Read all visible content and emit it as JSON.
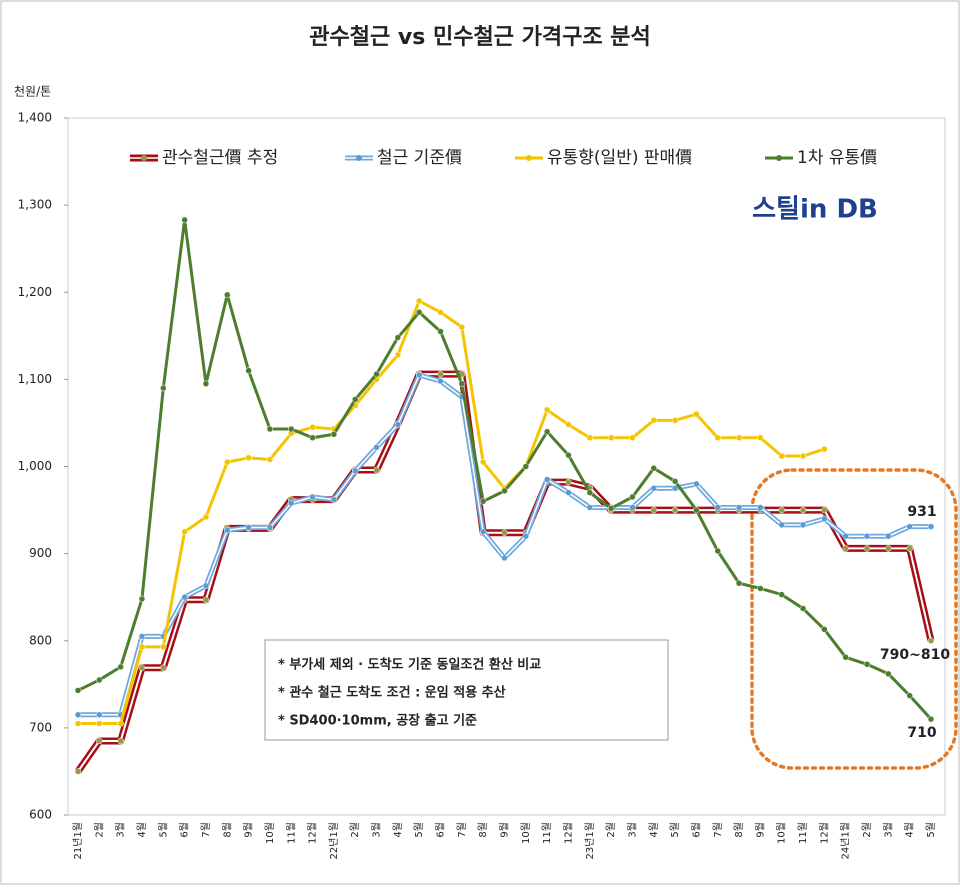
{
  "chart_data": {
    "type": "line",
    "title": "관수철근 vs 민수철근 가격구조 분석",
    "y_unit": "천원/톤",
    "logo": "스틸in DB",
    "categories": [
      "21년1월",
      "2월",
      "3월",
      "4월",
      "5월",
      "6월",
      "7월",
      "8월",
      "9월",
      "10월",
      "11월",
      "12월",
      "22년1월",
      "2월",
      "3월",
      "4월",
      "5월",
      "6월",
      "7월",
      "8월",
      "9월",
      "10월",
      "11월",
      "12월",
      "23년1월",
      "2월",
      "3월",
      "4월",
      "5월",
      "6월",
      "7월",
      "8월",
      "9월",
      "10월",
      "11월",
      "12월",
      "24년1월",
      "2월",
      "3월",
      "4월",
      "5월"
    ],
    "series": [
      {
        "name": "관수철근價 추정",
        "color": "#a50f15",
        "marker_color": "#8f9e45",
        "values": [
          650,
          685,
          685,
          769,
          769,
          847,
          847,
          929,
          929,
          929,
          962,
          962,
          962,
          996,
          996,
          1049,
          1106,
          1106,
          1106,
          924,
          924,
          924,
          982,
          982,
          976,
          950,
          950,
          950,
          950,
          950,
          950,
          950,
          950,
          950,
          950,
          950,
          906,
          906,
          906,
          906,
          800
        ]
      },
      {
        "name": "철근 기준價",
        "color": "#6fa8dc",
        "marker_color": "#5b9bd5",
        "values": [
          715,
          715,
          715,
          805,
          805,
          850,
          863,
          927,
          930,
          930,
          958,
          965,
          962,
          995,
          1022,
          1048,
          1105,
          1098,
          1080,
          925,
          895,
          920,
          985,
          970,
          953,
          953,
          953,
          975,
          975,
          980,
          953,
          953,
          953,
          933,
          933,
          940,
          920,
          920,
          920,
          931,
          931
        ]
      },
      {
        "name": "유통향(일반) 판매價",
        "color": "#f5c400",
        "marker_color": "#f5c400",
        "values": [
          705,
          705,
          705,
          793,
          793,
          925,
          942,
          1005,
          1010,
          1008,
          1038,
          1045,
          1043,
          1070,
          1100,
          1128,
          1190,
          1177,
          1160,
          1005,
          975,
          1000,
          1065,
          1048,
          1033,
          1033,
          1033,
          1053,
          1053,
          1060,
          1033,
          1033,
          1033,
          1012,
          1012,
          1020,
          null,
          null,
          null,
          null,
          null
        ]
      },
      {
        "name": "1차 유통價",
        "color": "#4e7d2e",
        "marker_color": "#4e7d2e",
        "values": [
          743,
          755,
          770,
          848,
          1090,
          1283,
          1095,
          1197,
          1110,
          1043,
          1043,
          1033,
          1037,
          1077,
          1106,
          1148,
          1177,
          1155,
          1095,
          960,
          972,
          1000,
          1040,
          1013,
          970,
          952,
          965,
          998,
          983,
          950,
          903,
          866,
          860,
          853,
          837,
          813,
          781,
          773,
          762,
          737,
          710
        ]
      }
    ],
    "ylim": [
      600,
      1400
    ],
    "yticks": [
      600,
      700,
      800,
      900,
      {
        "value": 1000,
        "label": "1,000"
      },
      {
        "value": 1100,
        "label": "1,100"
      },
      {
        "value": 1200,
        "label": "1,200"
      },
      {
        "value": 1300,
        "label": "1,300"
      },
      {
        "value": 1400,
        "label": "1,400"
      }
    ],
    "grid": false,
    "legend": "top",
    "annotations": [
      "931",
      "790~810",
      "710"
    ],
    "notes": [
      "* 부가세 제외 · 도착도 기준 동일조건 환산 비교",
      "* 관수 철근 도착도 조건 : 운임 적용 추산",
      "* SD400·10mm, 공장 출고 기준"
    ]
  }
}
